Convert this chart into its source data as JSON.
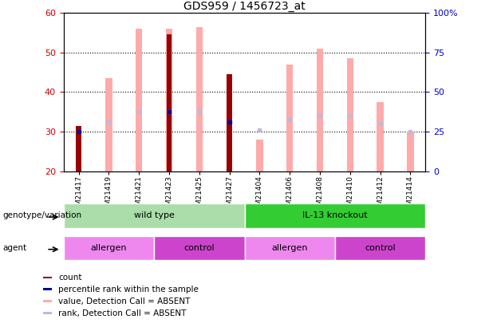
{
  "title": "GDS959 / 1456723_at",
  "samples": [
    "GSM21417",
    "GSM21419",
    "GSM21421",
    "GSM21423",
    "GSM21425",
    "GSM21427",
    "GSM21404",
    "GSM21406",
    "GSM21408",
    "GSM21410",
    "GSM21412",
    "GSM21414"
  ],
  "ylim": [
    20,
    60
  ],
  "yticks_left": [
    20,
    30,
    40,
    50,
    60
  ],
  "yticks_right": [
    0,
    25,
    50,
    75,
    100
  ],
  "count_values": [
    31.5,
    null,
    null,
    54.5,
    null,
    44.5,
    null,
    null,
    null,
    null,
    null,
    null
  ],
  "percentile_rank": [
    30,
    null,
    null,
    35,
    null,
    32.5,
    null,
    null,
    null,
    null,
    null,
    null
  ],
  "pink_bar_top": [
    null,
    43.5,
    56,
    56,
    56.5,
    null,
    28,
    47,
    51,
    48.5,
    37.5,
    30
  ],
  "light_blue_rank": [
    null,
    32.5,
    35,
    35,
    35,
    null,
    30.5,
    33,
    34,
    34,
    32,
    30
  ],
  "bar_bottom": 20,
  "genotype_groups": [
    {
      "label": "wild type",
      "start": 0,
      "end": 6,
      "color": "#aaddaa"
    },
    {
      "label": "IL-13 knockout",
      "start": 6,
      "end": 12,
      "color": "#33cc33"
    }
  ],
  "agent_groups": [
    {
      "label": "allergen",
      "start": 0,
      "end": 3,
      "color": "#ee88ee"
    },
    {
      "label": "control",
      "start": 3,
      "end": 6,
      "color": "#cc44cc"
    },
    {
      "label": "allergen",
      "start": 6,
      "end": 9,
      "color": "#ee88ee"
    },
    {
      "label": "control",
      "start": 9,
      "end": 12,
      "color": "#cc44cc"
    }
  ],
  "color_count": "#990000",
  "color_percentile": "#000099",
  "color_pink_bar": "#ffaaaa",
  "color_light_blue": "#bbbbdd",
  "color_axis_left": "#cc0000",
  "color_axis_right": "#0000cc",
  "tick_bg_color": "#dddddd"
}
